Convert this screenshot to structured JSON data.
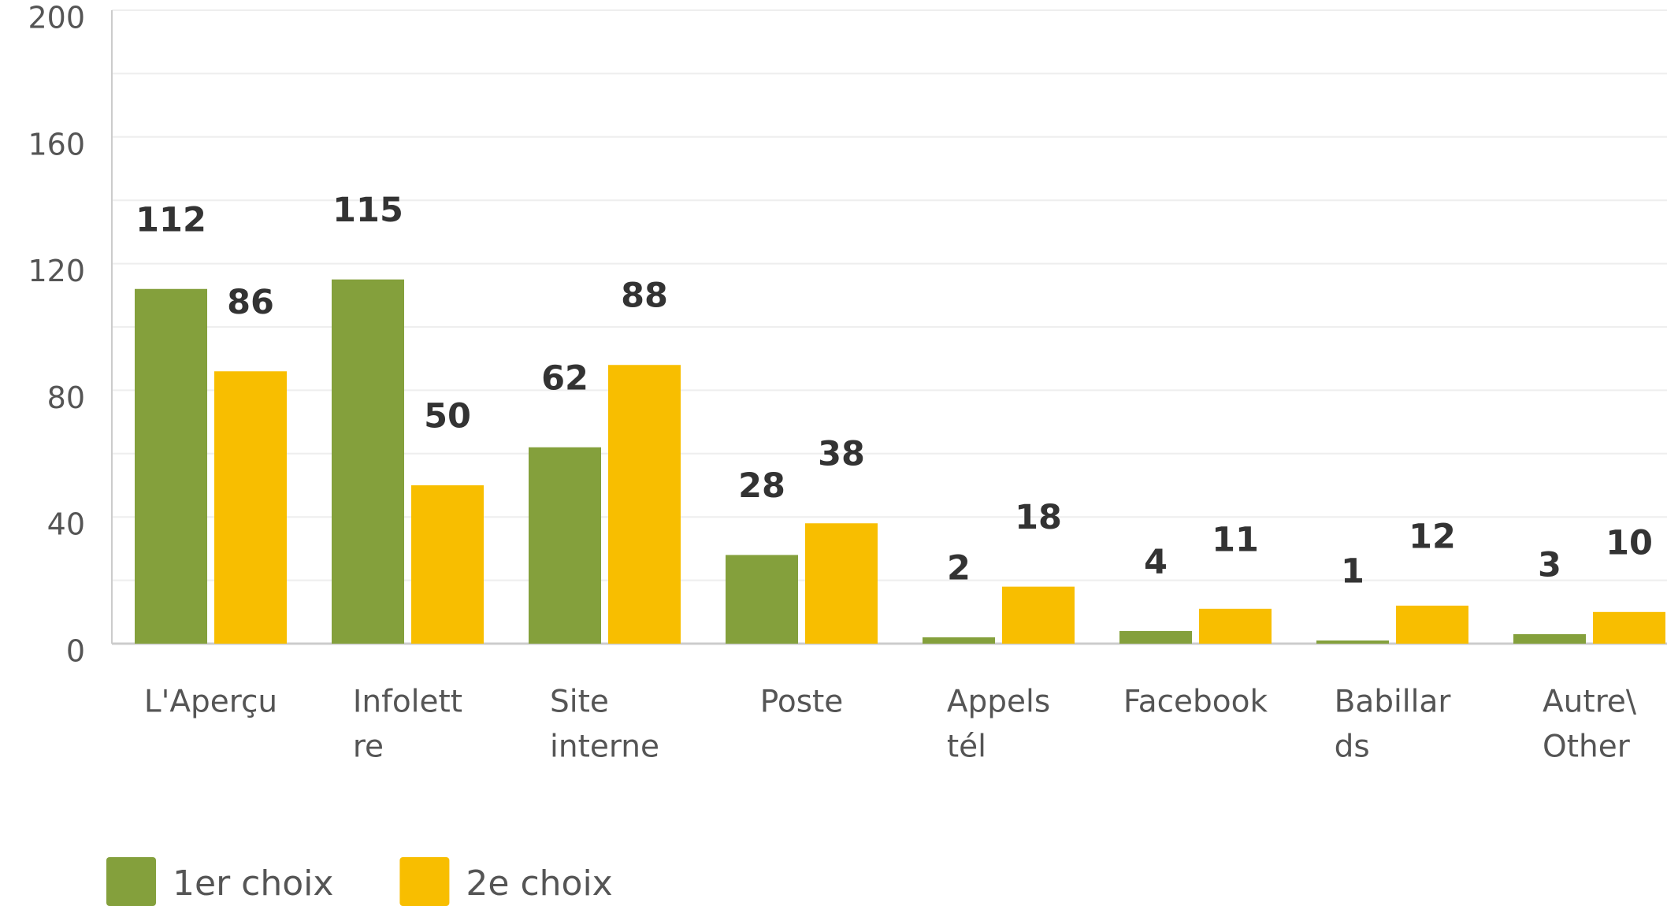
{
  "chart_data": {
    "type": "bar",
    "categories": [
      [
        "L'Aperçu"
      ],
      [
        "Infolett",
        "re"
      ],
      [
        "Site",
        "interne"
      ],
      [
        "Poste"
      ],
      [
        "Appels",
        "tél"
      ],
      [
        "Facebook"
      ],
      [
        "Babillar",
        "ds"
      ],
      [
        "Autre\\",
        "Other"
      ]
    ],
    "series": [
      {
        "name": "1er choix",
        "color": "#84a03c",
        "values": [
          112,
          115,
          62,
          28,
          2,
          4,
          1,
          3
        ]
      },
      {
        "name": "2e choix",
        "color": "#f8be00",
        "values": [
          86,
          50,
          88,
          38,
          18,
          11,
          12,
          10
        ]
      }
    ],
    "ylim": [
      0,
      200
    ],
    "yticks": [
      0,
      40,
      80,
      120,
      160,
      200
    ],
    "grid": true,
    "legend": "bottom"
  }
}
